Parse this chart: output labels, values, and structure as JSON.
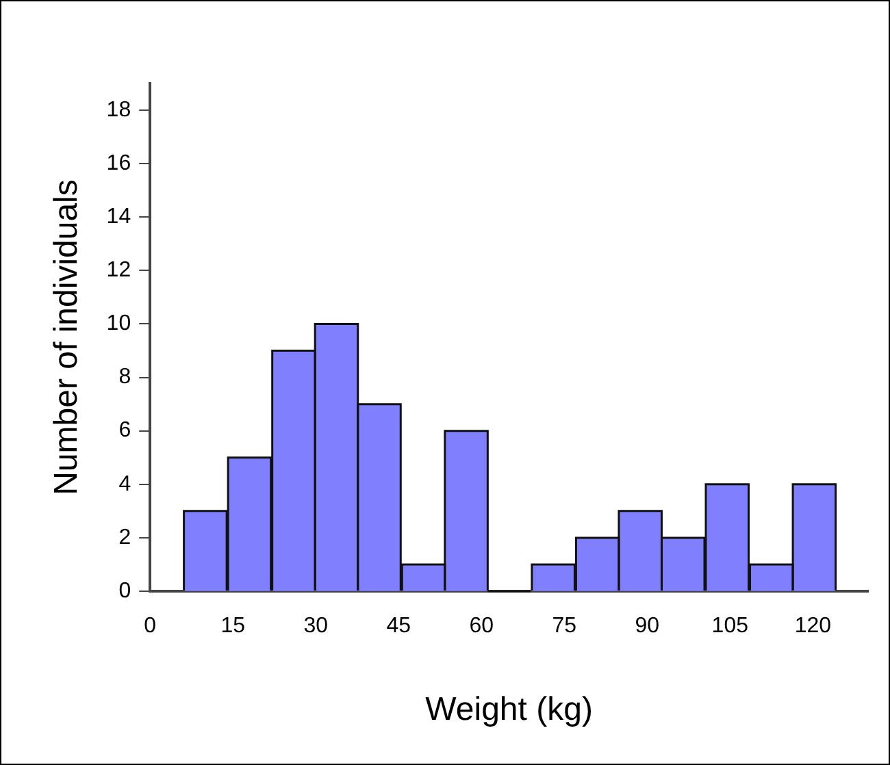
{
  "chart_data": {
    "type": "histogram",
    "xlabel": "Weight (kg)",
    "ylabel": "Number of individuals",
    "bins": [
      6,
      14,
      22,
      30,
      37.5,
      45.5,
      53.5,
      61,
      69,
      77,
      85,
      92.5,
      100.5,
      108.5,
      116.5,
      124
    ],
    "values": [
      3,
      5,
      9,
      10,
      7,
      1,
      6,
      0,
      1,
      2,
      3,
      2,
      4,
      1,
      4
    ],
    "color": "#8080ff",
    "xlim": [
      0,
      130
    ],
    "xticks": [
      0,
      15,
      30,
      45,
      60,
      75,
      90,
      105,
      120
    ],
    "ylim": [
      0,
      19
    ],
    "yticks": [
      0,
      2,
      4,
      6,
      8,
      10,
      12,
      14,
      16,
      18
    ],
    "grid": false,
    "legend": false
  }
}
